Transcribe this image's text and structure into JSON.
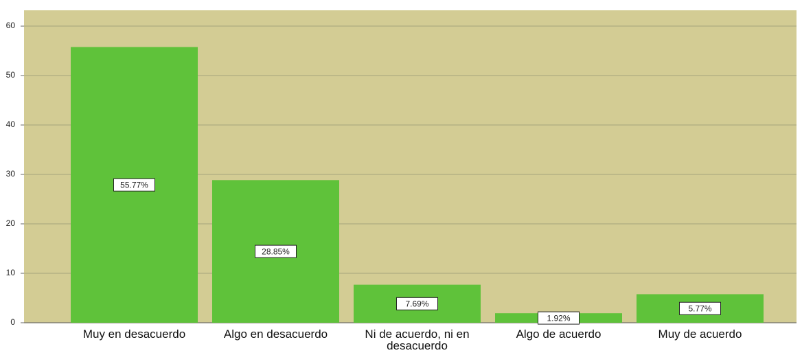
{
  "chart_data": {
    "type": "bar",
    "categories": [
      "Muy en desacuerdo",
      "Algo en desacuerdo",
      "Ni de acuerdo, ni en desacuerdo",
      "Algo de acuerdo",
      "Muy de acuerdo"
    ],
    "values": [
      55.77,
      28.85,
      7.69,
      1.92,
      5.77
    ],
    "value_labels": [
      "55.77%",
      "28.85%",
      "7.69%",
      "1.92%",
      "5.77%"
    ],
    "color": "#5fc23a",
    "ylim": [
      0,
      63.2
    ],
    "yticks": [
      0,
      10,
      20,
      30,
      40,
      50,
      60
    ],
    "grid": true
  }
}
